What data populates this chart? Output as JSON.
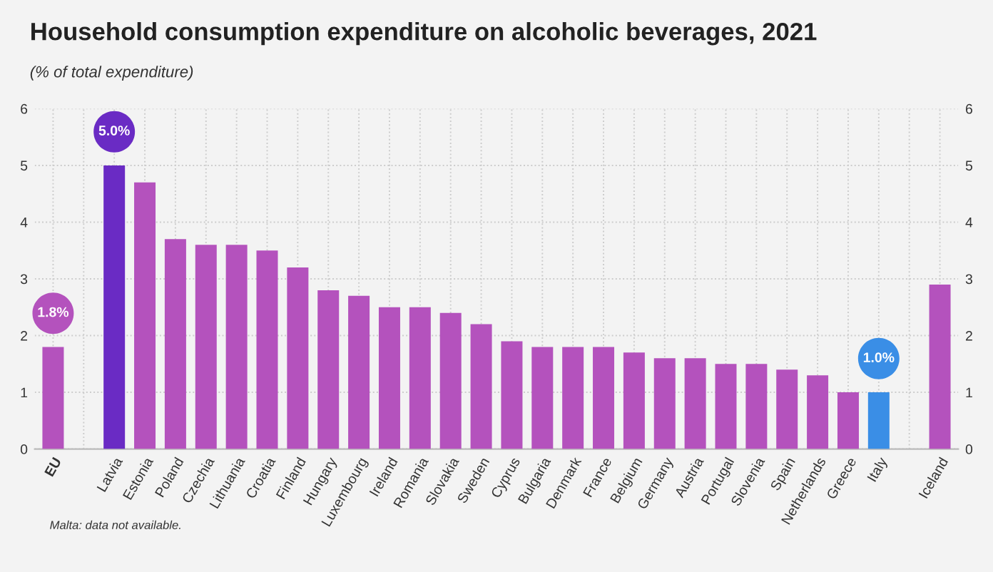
{
  "chart_data": {
    "type": "bar",
    "title": "Household consumption expenditure on alcoholic beverages, 2021",
    "subtitle": "(% of total expenditure)",
    "categories": [
      "EU",
      null,
      "Latvia",
      "Estonia",
      "Poland",
      "Czechia",
      "Lithuania",
      "Croatia",
      "Finland",
      "Hungary",
      "Luxembourg",
      "Ireland",
      "Romania",
      "Slovakia",
      "Sweden",
      "Cyprus",
      "Bulgaria",
      "Denmark",
      "France",
      "Belgium",
      "Germany",
      "Austria",
      "Portugal",
      "Slovenia",
      "Spain",
      "Netherlands",
      "Greece",
      "Italy",
      null,
      "Iceland"
    ],
    "values": [
      1.8,
      null,
      5.0,
      4.7,
      3.7,
      3.6,
      3.6,
      3.5,
      3.2,
      2.8,
      2.7,
      2.5,
      2.5,
      2.4,
      2.2,
      1.9,
      1.8,
      1.8,
      1.8,
      1.7,
      1.6,
      1.6,
      1.5,
      1.5,
      1.4,
      1.3,
      1.0,
      1.0,
      null,
      2.9
    ],
    "colors": [
      "#b452bd",
      null,
      "#6a2bc4",
      "#b452bd",
      "#b452bd",
      "#b452bd",
      "#b452bd",
      "#b452bd",
      "#b452bd",
      "#b452bd",
      "#b452bd",
      "#b452bd",
      "#b452bd",
      "#b452bd",
      "#b452bd",
      "#b452bd",
      "#b452bd",
      "#b452bd",
      "#b452bd",
      "#b452bd",
      "#b452bd",
      "#b452bd",
      "#b452bd",
      "#b452bd",
      "#b452bd",
      "#b452bd",
      "#b452bd",
      "#3a8ee6",
      null,
      "#b452bd"
    ],
    "value_labels": [
      "1.8%",
      null,
      "5.0%",
      null,
      null,
      null,
      null,
      null,
      null,
      null,
      null,
      null,
      null,
      null,
      null,
      null,
      null,
      null,
      null,
      null,
      null,
      null,
      null,
      null,
      null,
      null,
      null,
      "1.0%",
      null,
      null
    ],
    "ylim": [
      0,
      6
    ],
    "yticks": [
      0,
      1,
      2,
      3,
      4,
      5,
      6
    ],
    "y2lim": [
      0,
      6
    ],
    "y2ticks": [
      0,
      1,
      2,
      3,
      4,
      5,
      6
    ],
    "grid": true,
    "annotations": [
      "Malta: data not available."
    ]
  }
}
